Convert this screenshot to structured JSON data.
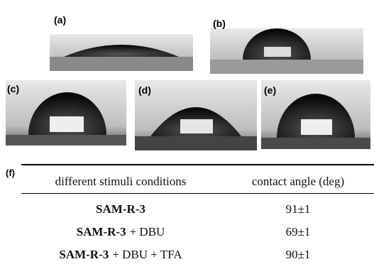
{
  "panels": [
    {
      "label": "(a)"
    },
    {
      "label": "(b)"
    },
    {
      "label": "(c)"
    },
    {
      "label": "(d)"
    },
    {
      "label": "(e)"
    },
    {
      "label": "(f)"
    }
  ],
  "table": {
    "header": [
      "different stimuli conditions",
      "contact angle (deg)"
    ],
    "rows": [
      {
        "condition": {
          "bold": "SAM-R-3"
        },
        "angle": "91±1"
      },
      {
        "condition": {
          "bold": "SAM-R-3",
          "rest": "+ DBU"
        },
        "angle": "69±1"
      },
      {
        "condition": {
          "bold": "SAM-R-3",
          "rest": "+ DBU + TFA"
        },
        "angle": "90±1"
      }
    ]
  }
}
